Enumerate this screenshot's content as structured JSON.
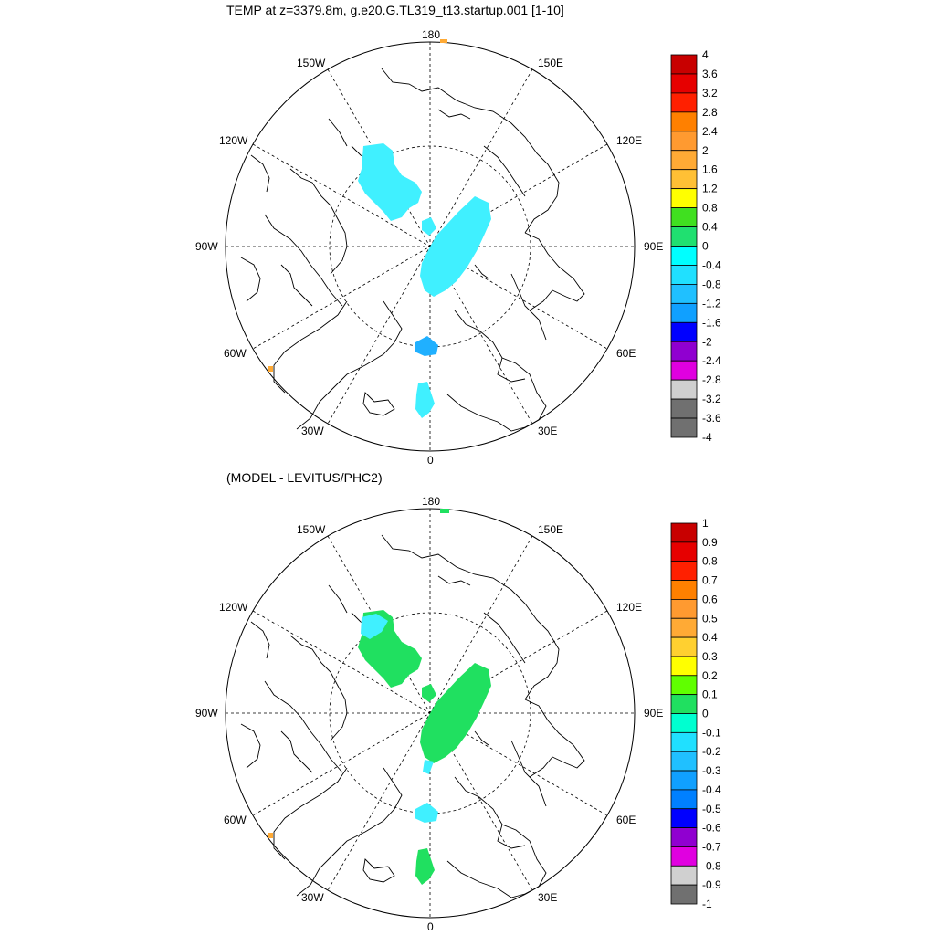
{
  "top_panel": {
    "title": "TEMP at z=3379.8m, g.e20.G.TL319_t13.startup.001 [1-10]",
    "lon_labels": [
      "180",
      "150E",
      "120E",
      "90E",
      "60E",
      "30E",
      "0",
      "30W",
      "60W",
      "90W",
      "120W",
      "150W"
    ],
    "colorbar": {
      "labels": [
        "4",
        "3.6",
        "3.2",
        "2.8",
        "2.4",
        "2",
        "1.6",
        "1.2",
        "0.8",
        "0.4",
        "0",
        "-0.4",
        "-0.8",
        "-1.2",
        "-1.6",
        "-2",
        "-2.4",
        "-2.8",
        "-3.2",
        "-3.6",
        "-4"
      ],
      "colors": [
        "#c80000",
        "#e60000",
        "#ff2000",
        "#ff8000",
        "#ff9a30",
        "#ffaa35",
        "#ffc035",
        "#ffff00",
        "#40e020",
        "#20e070",
        "#00ffff",
        "#20e0ff",
        "#20c0ff",
        "#10a0ff",
        "#0000ff",
        "#9000d0",
        "#e000e0",
        "#d0d0d0",
        "#707070",
        "#707070"
      ]
    },
    "fill_color": "#40f0ff"
  },
  "bottom_panel": {
    "title": "(MODEL - LEVITUS/PHC2)",
    "lon_labels": [
      "180",
      "150E",
      "120E",
      "90E",
      "60E",
      "30E",
      "0",
      "30W",
      "60W",
      "90W",
      "120W",
      "150W"
    ],
    "colorbar": {
      "labels": [
        "1",
        "0.9",
        "0.8",
        "0.7",
        "0.6",
        "0.5",
        "0.4",
        "0.3",
        "0.2",
        "0.1",
        "0",
        "-0.1",
        "-0.2",
        "-0.3",
        "-0.4",
        "-0.5",
        "-0.6",
        "-0.7",
        "-0.8",
        "-0.9",
        "-1"
      ],
      "colors": [
        "#c80000",
        "#e60000",
        "#ff2000",
        "#ff8000",
        "#ff9a30",
        "#ffaa35",
        "#ffd030",
        "#ffff00",
        "#60ff00",
        "#20e060",
        "#00ffd0",
        "#20e0ff",
        "#20c0ff",
        "#10a0ff",
        "#0080ff",
        "#0000ff",
        "#9000d0",
        "#e000e0",
        "#d0d0d0",
        "#707070"
      ]
    },
    "fill_color": "#20e060"
  }
}
